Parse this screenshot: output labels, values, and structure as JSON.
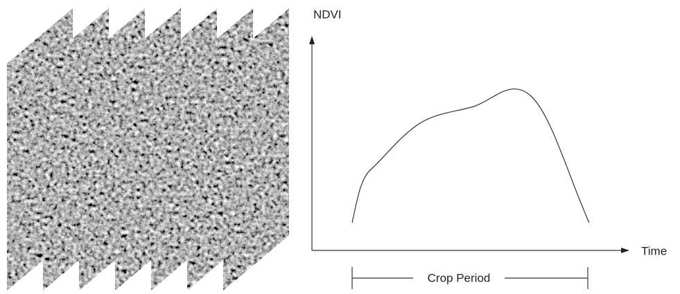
{
  "labels": {
    "y_axis": "NDVI",
    "x_axis": "Time",
    "period": "Crop Period"
  }
}
